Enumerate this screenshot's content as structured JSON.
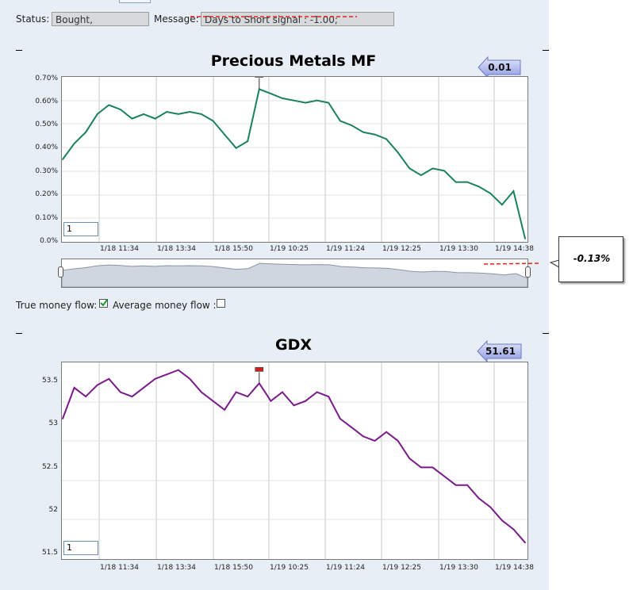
{
  "status": {
    "label": "Status:",
    "value": "Bought,"
  },
  "message": {
    "label": "Message:",
    "value": "Days to Short signal : -1.00;"
  },
  "chart1": {
    "title": "Precious Metals MF",
    "badge": "0.01",
    "zoom_value": "1",
    "callout": "-0.13%",
    "accent": "#1a8060"
  },
  "options": {
    "true_flow_label": "True money flow:",
    "avg_flow_label": "Average money flow :",
    "true_flow_checked": true,
    "avg_flow_checked": false
  },
  "chart2": {
    "title": "GDX",
    "badge": "51.61",
    "zoom_value": "1",
    "accent": "#7a1a8a"
  },
  "chart_data": [
    {
      "type": "line",
      "title": "Precious Metals MF",
      "xlabel": "",
      "ylabel": "",
      "ylim": [
        0,
        0.7
      ],
      "y_ticks": [
        "0.70%",
        "0.60%",
        "0.50%",
        "0.40%",
        "0.30%",
        "0.20%",
        "0.10%",
        "0.0%"
      ],
      "x_ticks": [
        "1/18 11:34",
        "1/18 13:34",
        "1/18 15:50",
        "1/19 10:25",
        "1/19 11:24",
        "1/19 12:25",
        "1/19 13:30",
        "1/19 14:38"
      ],
      "series": [
        {
          "name": "Precious Metals MF",
          "values": [
            0.35,
            0.42,
            0.47,
            0.55,
            0.59,
            0.57,
            0.53,
            0.55,
            0.53,
            0.56,
            0.55,
            0.56,
            0.55,
            0.52,
            0.46,
            0.4,
            0.43,
            0.66,
            0.64,
            0.62,
            0.61,
            0.6,
            0.61,
            0.6,
            0.52,
            0.5,
            0.47,
            0.46,
            0.44,
            0.38,
            0.31,
            0.28,
            0.31,
            0.3,
            0.25,
            0.25,
            0.23,
            0.2,
            0.15,
            0.21,
            0.0
          ]
        }
      ]
    },
    {
      "type": "line",
      "title": "GDX",
      "xlabel": "",
      "ylabel": "",
      "ylim": [
        51.45,
        53.6
      ],
      "y_ticks": [
        "53.5",
        "53",
        "52.5",
        "52",
        "51.5"
      ],
      "x_ticks": [
        "1/18 11:34",
        "1/18 13:34",
        "1/18 15:50",
        "1/19 10:25",
        "1/19 11:24",
        "1/19 12:25",
        "1/19 13:30",
        "1/19 14:38"
      ],
      "series": [
        {
          "name": "GDX",
          "values": [
            53.0,
            53.35,
            53.25,
            53.38,
            53.45,
            53.3,
            53.25,
            53.35,
            53.45,
            53.5,
            53.55,
            53.45,
            53.3,
            53.2,
            53.1,
            53.3,
            53.25,
            53.4,
            53.2,
            53.3,
            53.15,
            53.2,
            53.3,
            53.25,
            53.0,
            52.9,
            52.8,
            52.75,
            52.85,
            52.75,
            52.55,
            52.45,
            52.45,
            52.35,
            52.25,
            52.25,
            52.1,
            52.0,
            51.85,
            51.75,
            51.6
          ]
        }
      ]
    }
  ]
}
